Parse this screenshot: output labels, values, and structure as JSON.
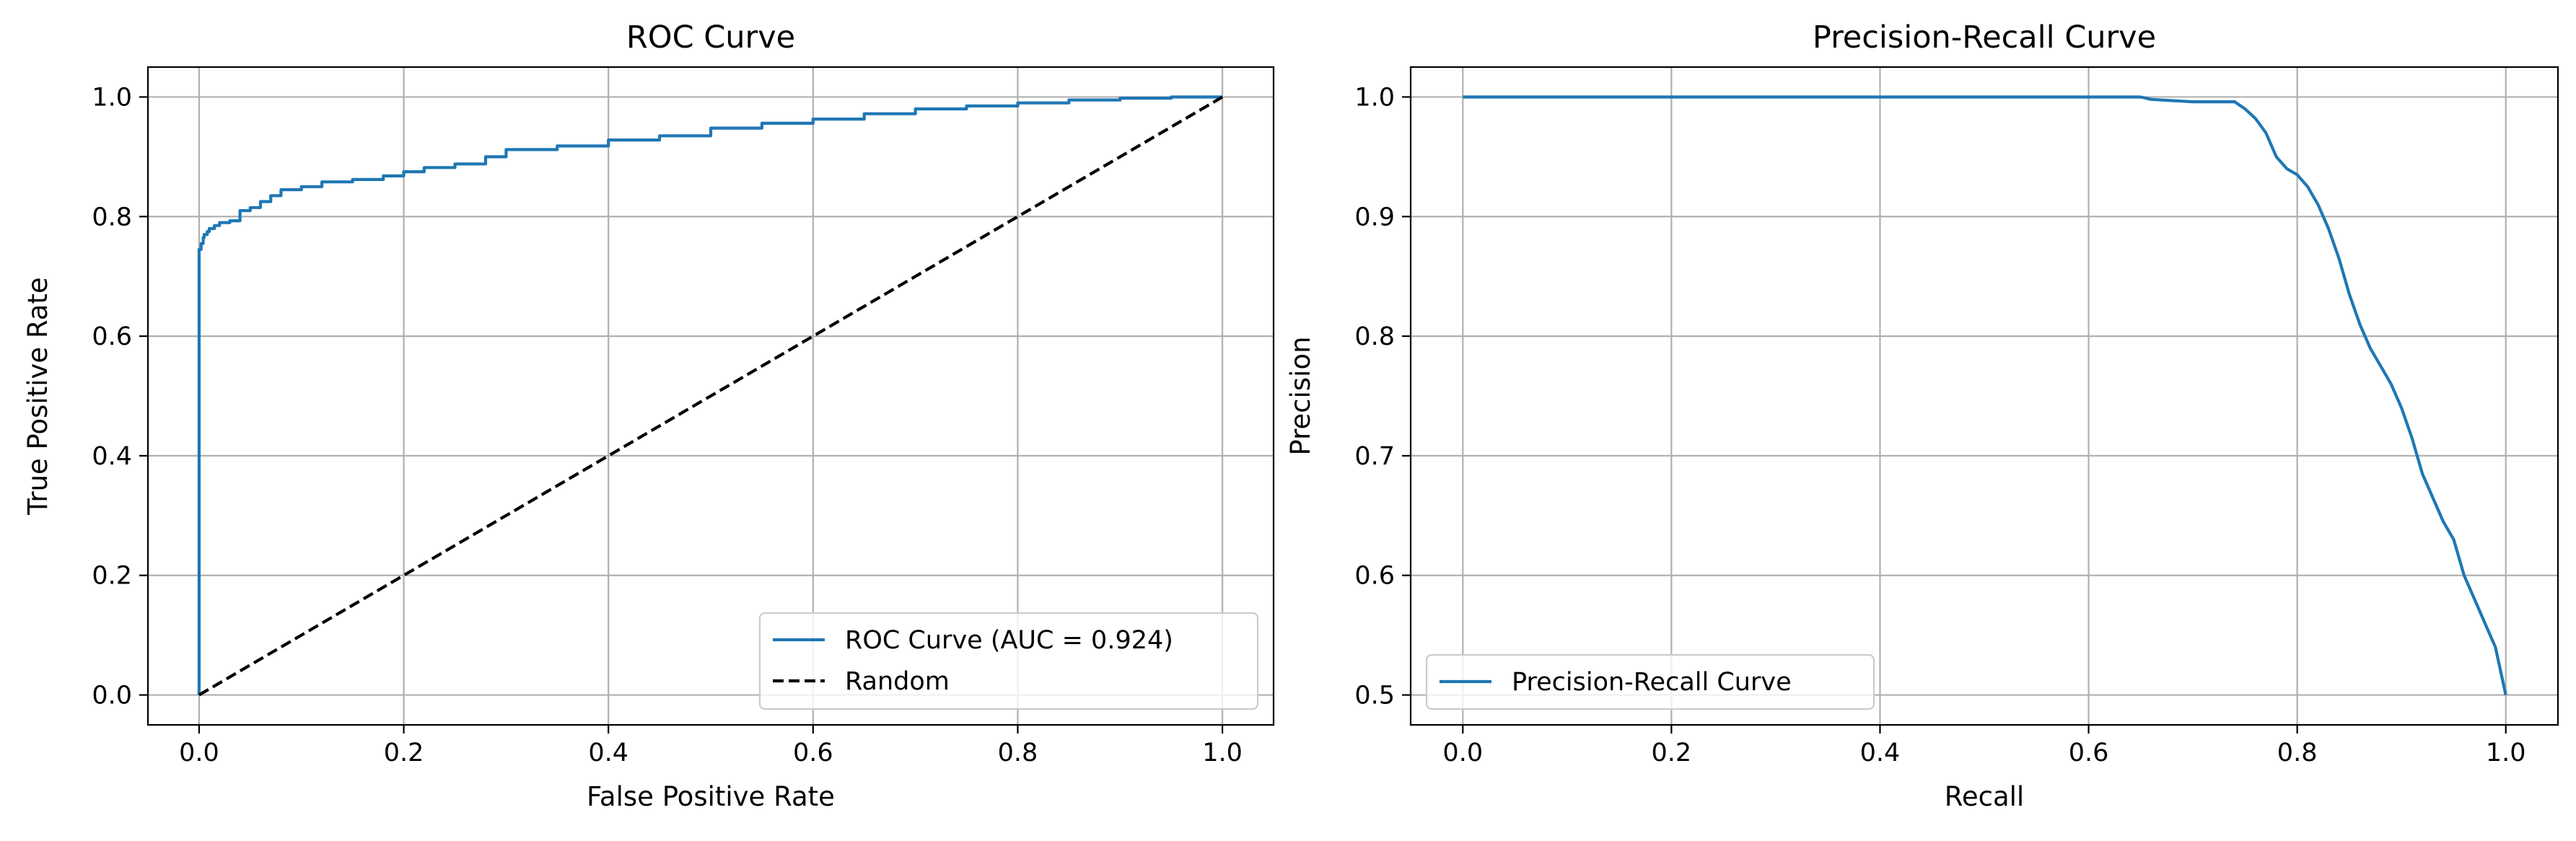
{
  "colors": {
    "curve": "#1f77b4",
    "random": "#000000",
    "grid": "#b0b0b0"
  },
  "chart_data": [
    {
      "type": "line",
      "title": "ROC Curve",
      "xlabel": "False Positive Rate",
      "ylabel": "True Positive Rate",
      "xlim": [
        -0.05,
        1.05
      ],
      "ylim": [
        -0.05,
        1.05
      ],
      "xticks": [
        0.0,
        0.2,
        0.4,
        0.6,
        0.8,
        1.0
      ],
      "yticks": [
        0.0,
        0.2,
        0.4,
        0.6,
        0.8,
        1.0
      ],
      "xtick_labels": [
        "0.0",
        "0.2",
        "0.4",
        "0.6",
        "0.8",
        "1.0"
      ],
      "ytick_labels": [
        "0.0",
        "0.2",
        "0.4",
        "0.6",
        "0.8",
        "1.0"
      ],
      "grid": true,
      "legend_position": "lower-right",
      "series": [
        {
          "name": "ROC Curve (AUC = 0.924)",
          "style": "solid",
          "color": "#1f77b4",
          "step": "vertical-first",
          "x": [
            0.0,
            0.0,
            0.0,
            0.002,
            0.004,
            0.005,
            0.008,
            0.01,
            0.015,
            0.02,
            0.03,
            0.04,
            0.05,
            0.06,
            0.07,
            0.08,
            0.1,
            0.12,
            0.15,
            0.18,
            0.2,
            0.22,
            0.25,
            0.28,
            0.3,
            0.35,
            0.4,
            0.45,
            0.5,
            0.55,
            0.6,
            0.65,
            0.7,
            0.75,
            0.8,
            0.85,
            0.9,
            0.95,
            1.0
          ],
          "y": [
            0.0,
            0.66,
            0.7,
            0.745,
            0.755,
            0.765,
            0.77,
            0.775,
            0.78,
            0.785,
            0.79,
            0.793,
            0.81,
            0.815,
            0.825,
            0.835,
            0.845,
            0.85,
            0.858,
            0.862,
            0.868,
            0.875,
            0.882,
            0.888,
            0.9,
            0.912,
            0.918,
            0.928,
            0.935,
            0.948,
            0.956,
            0.963,
            0.972,
            0.98,
            0.985,
            0.99,
            0.995,
            0.998,
            1.0
          ]
        },
        {
          "name": "Random",
          "style": "dashed",
          "color": "#000000",
          "step": "none",
          "x": [
            0.0,
            1.0
          ],
          "y": [
            0.0,
            1.0
          ]
        }
      ]
    },
    {
      "type": "line",
      "title": "Precision-Recall Curve",
      "xlabel": "Recall",
      "ylabel": "Precision",
      "xlim": [
        -0.05,
        1.05
      ],
      "ylim": [
        0.475,
        1.025
      ],
      "xticks": [
        0.0,
        0.2,
        0.4,
        0.6,
        0.8,
        1.0
      ],
      "yticks": [
        0.5,
        0.6,
        0.7,
        0.8,
        0.9,
        1.0
      ],
      "xtick_labels": [
        "0.0",
        "0.2",
        "0.4",
        "0.6",
        "0.8",
        "1.0"
      ],
      "ytick_labels": [
        "0.5",
        "0.6",
        "0.7",
        "0.8",
        "0.9",
        "1.0"
      ],
      "grid": true,
      "legend_position": "lower-left",
      "series": [
        {
          "name": "Precision-Recall Curve",
          "style": "solid",
          "color": "#1f77b4",
          "step": "none",
          "x": [
            0.0,
            0.65,
            0.66,
            0.7,
            0.74,
            0.75,
            0.76,
            0.77,
            0.78,
            0.79,
            0.8,
            0.81,
            0.82,
            0.83,
            0.84,
            0.85,
            0.86,
            0.87,
            0.88,
            0.89,
            0.9,
            0.91,
            0.92,
            0.93,
            0.94,
            0.95,
            0.96,
            0.97,
            0.98,
            0.99,
            1.0
          ],
          "y": [
            1.0,
            1.0,
            0.998,
            0.996,
            0.996,
            0.99,
            0.982,
            0.97,
            0.95,
            0.94,
            0.935,
            0.925,
            0.91,
            0.89,
            0.865,
            0.835,
            0.81,
            0.79,
            0.775,
            0.76,
            0.74,
            0.715,
            0.685,
            0.665,
            0.645,
            0.63,
            0.6,
            0.58,
            0.56,
            0.54,
            0.5
          ]
        }
      ]
    }
  ]
}
